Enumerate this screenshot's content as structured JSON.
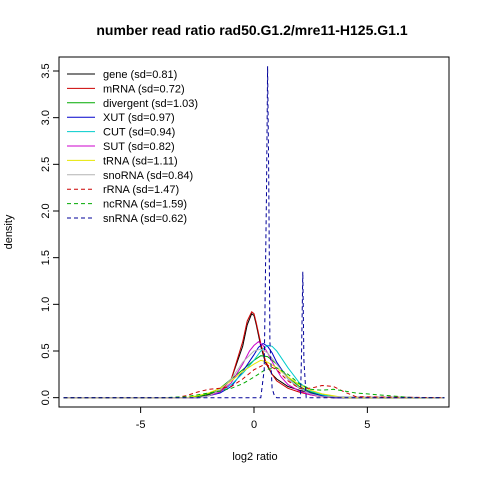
{
  "chart_data": {
    "type": "line",
    "title": "number read ratio rad50.G1.2/mre11-H125.G1.1",
    "xlabel": "log2 ratio",
    "ylabel": "density",
    "xlim": [
      -8.6,
      8.6
    ],
    "ylim": [
      -0.1,
      3.65
    ],
    "x_ticks": [
      -5,
      0,
      5
    ],
    "x_tick_labels": [
      "-5",
      "0",
      "5"
    ],
    "y_ticks": [
      0.0,
      0.5,
      1.0,
      1.5,
      2.0,
      2.5,
      3.0,
      3.5
    ],
    "y_tick_labels": [
      "0.0",
      "0.5",
      "1.0",
      "1.5",
      "2.0",
      "2.5",
      "3.0",
      "3.5"
    ],
    "legend_position": "top-left",
    "grid": false,
    "series": [
      {
        "name": "gene (sd=0.81)",
        "color": "#000000",
        "dash": false,
        "x": [
          -8.4,
          -3.0,
          -2.5,
          -2.0,
          -1.5,
          -1.0,
          -0.5,
          -0.3,
          -0.1,
          0.0,
          0.1,
          0.3,
          0.5,
          0.8,
          1.0,
          1.5,
          2.0,
          2.5,
          3.0,
          3.5,
          4.0,
          8.4
        ],
        "y": [
          0,
          0,
          0.01,
          0.03,
          0.08,
          0.2,
          0.55,
          0.78,
          0.9,
          0.88,
          0.78,
          0.55,
          0.38,
          0.25,
          0.2,
          0.12,
          0.08,
          0.05,
          0.03,
          0.01,
          0,
          0
        ]
      },
      {
        "name": "mRNA (sd=0.72)",
        "color": "#cc0000",
        "dash": false,
        "x": [
          -8.4,
          -2.5,
          -2.0,
          -1.5,
          -1.0,
          -0.5,
          -0.3,
          -0.1,
          0.0,
          0.1,
          0.3,
          0.5,
          0.8,
          1.0,
          1.5,
          2.0,
          2.5,
          3.0,
          3.5,
          8.4
        ],
        "y": [
          0,
          0,
          0.02,
          0.06,
          0.2,
          0.6,
          0.82,
          0.92,
          0.9,
          0.8,
          0.58,
          0.4,
          0.25,
          0.18,
          0.1,
          0.06,
          0.03,
          0.01,
          0,
          0
        ]
      },
      {
        "name": "divergent (sd=1.03)",
        "color": "#00aa00",
        "dash": false,
        "x": [
          -8.4,
          -3.0,
          -2.5,
          -2.0,
          -1.5,
          -1.0,
          -0.5,
          0.0,
          0.3,
          0.6,
          1.0,
          1.5,
          2.0,
          2.5,
          3.0,
          3.5,
          4.0,
          8.4
        ],
        "y": [
          0,
          0,
          0.01,
          0.04,
          0.1,
          0.2,
          0.3,
          0.4,
          0.45,
          0.44,
          0.36,
          0.22,
          0.12,
          0.06,
          0.03,
          0.01,
          0,
          0
        ]
      },
      {
        "name": "XUT (sd=0.97)",
        "color": "#0000cc",
        "dash": false,
        "x": [
          -8.4,
          -2.5,
          -2.0,
          -1.5,
          -1.0,
          -0.5,
          0.0,
          0.2,
          0.4,
          0.6,
          0.8,
          1.0,
          1.5,
          2.0,
          2.5,
          3.0,
          3.5,
          8.4
        ],
        "y": [
          0,
          0,
          0.02,
          0.05,
          0.12,
          0.28,
          0.46,
          0.54,
          0.58,
          0.55,
          0.48,
          0.38,
          0.2,
          0.1,
          0.05,
          0.02,
          0,
          0
        ]
      },
      {
        "name": "CUT (sd=0.94)",
        "color": "#00cccc",
        "dash": false,
        "x": [
          -8.4,
          -2.5,
          -2.0,
          -1.5,
          -1.0,
          -0.5,
          0.0,
          0.3,
          0.6,
          0.8,
          1.0,
          1.5,
          2.0,
          2.5,
          3.0,
          3.5,
          8.4
        ],
        "y": [
          0,
          0,
          0.02,
          0.06,
          0.14,
          0.26,
          0.4,
          0.5,
          0.56,
          0.55,
          0.5,
          0.32,
          0.16,
          0.07,
          0.03,
          0.01,
          0
        ]
      },
      {
        "name": "SUT (sd=0.82)",
        "color": "#cc00cc",
        "dash": false,
        "x": [
          -8.4,
          -2.5,
          -2.0,
          -1.5,
          -1.0,
          -0.5,
          -0.2,
          0.0,
          0.2,
          0.4,
          0.6,
          0.9,
          1.2,
          1.5,
          2.0,
          2.5,
          3.0,
          8.4
        ],
        "y": [
          0,
          0,
          0.02,
          0.06,
          0.16,
          0.36,
          0.5,
          0.56,
          0.6,
          0.56,
          0.48,
          0.34,
          0.22,
          0.14,
          0.07,
          0.03,
          0.01,
          0
        ]
      },
      {
        "name": "tRNA (sd=1.11)",
        "color": "#e6e600",
        "dash": false,
        "x": [
          -8.4,
          -3.0,
          -2.5,
          -2.0,
          -1.5,
          -1.0,
          -0.5,
          0.0,
          0.3,
          0.6,
          1.0,
          1.5,
          2.0,
          2.5,
          3.0,
          3.5,
          4.0,
          8.4
        ],
        "y": [
          0,
          0,
          0.02,
          0.05,
          0.1,
          0.18,
          0.28,
          0.36,
          0.4,
          0.38,
          0.32,
          0.22,
          0.14,
          0.08,
          0.04,
          0.02,
          0,
          0
        ]
      },
      {
        "name": "snoRNA (sd=0.84)",
        "color": "#b3b3b3",
        "dash": false,
        "x": [
          -8.4,
          -2.5,
          -2.0,
          -1.5,
          -1.0,
          -0.5,
          0.0,
          0.3,
          0.6,
          1.0,
          1.5,
          2.0,
          2.5,
          3.0,
          8.4
        ],
        "y": [
          0,
          0,
          0.02,
          0.08,
          0.2,
          0.38,
          0.5,
          0.52,
          0.48,
          0.36,
          0.2,
          0.1,
          0.04,
          0.01,
          0
        ]
      },
      {
        "name": "rRNA (sd=1.47)",
        "color": "#cc0000",
        "dash": true,
        "x": [
          -8.4,
          -3.5,
          -3.0,
          -2.5,
          -2.0,
          -1.5,
          -1.0,
          -0.5,
          0.0,
          0.5,
          1.0,
          1.5,
          2.0,
          2.5,
          3.0,
          3.5,
          4.0,
          4.5,
          8.4
        ],
        "y": [
          0,
          0,
          0.02,
          0.06,
          0.09,
          0.1,
          0.12,
          0.2,
          0.3,
          0.36,
          0.3,
          0.18,
          0.1,
          0.1,
          0.13,
          0.12,
          0.06,
          0.01,
          0
        ]
      },
      {
        "name": "ncRNA (sd=1.59)",
        "color": "#00aa00",
        "dash": true,
        "x": [
          -8.4,
          -4.0,
          -3.0,
          -2.5,
          -2.0,
          -1.5,
          -1.0,
          -0.5,
          0.0,
          0.5,
          1.0,
          1.5,
          2.0,
          2.5,
          3.0,
          3.5,
          4.0,
          4.5,
          5.0,
          5.5,
          6.0,
          6.5,
          7.0,
          8.4
        ],
        "y": [
          0,
          0,
          0.01,
          0.03,
          0.05,
          0.07,
          0.1,
          0.15,
          0.22,
          0.3,
          0.32,
          0.25,
          0.15,
          0.09,
          0.08,
          0.09,
          0.07,
          0.05,
          0.04,
          0.03,
          0.02,
          0.01,
          0,
          0
        ]
      },
      {
        "name": "snRNA (sd=0.62)",
        "color": "#000099",
        "dash": true,
        "x": [
          -8.4,
          0.3,
          0.45,
          0.55,
          0.6,
          0.65,
          0.7,
          0.8,
          0.9,
          1.0,
          2.05,
          2.1,
          2.15,
          2.2,
          2.3,
          8.4
        ],
        "y": [
          0,
          0,
          0.3,
          2.2,
          3.55,
          2.4,
          0.6,
          0.1,
          0.02,
          0,
          0,
          0.5,
          1.35,
          0.4,
          0,
          0
        ]
      }
    ]
  }
}
